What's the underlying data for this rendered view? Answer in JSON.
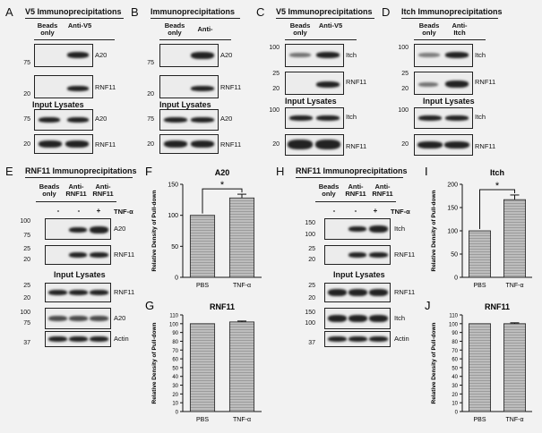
{
  "panels": {
    "A": {
      "letter": "A",
      "title": "V5 Immunoprecipitations",
      "lane1": "Beads only",
      "lane2": "Anti-V5",
      "section2": "Input Lysates",
      "blots": [
        {
          "mw": [
            "75"
          ],
          "name": "A20"
        },
        {
          "mw": [
            "20"
          ],
          "name": "RNF11"
        },
        {
          "mw": [
            "75"
          ],
          "name": "A20"
        },
        {
          "mw": [
            "20"
          ],
          "name": "RNF11"
        }
      ]
    },
    "B": {
      "letter": "B",
      "title": "Immunoprecipitations",
      "lane1": "Beads only",
      "lane2": "Anti-",
      "section2": "Input Lysates",
      "blots": [
        {
          "mw": [
            "75"
          ],
          "name": "A20"
        },
        {
          "mw": [
            "20"
          ],
          "name": "RNF11"
        },
        {
          "mw": [
            "75"
          ],
          "name": "A20"
        },
        {
          "mw": [
            "20"
          ],
          "name": "RNF11"
        }
      ]
    },
    "C": {
      "letter": "C",
      "title": "V5 Immunoprecipitations",
      "lane1": "Beads only",
      "lane2": "Anti-V5",
      "section2": "Input Lysates",
      "blots": [
        {
          "mw": [
            "100"
          ],
          "name": "Itch"
        },
        {
          "mw": [
            "25",
            "20"
          ],
          "name": "RNF11"
        },
        {
          "mw": [
            "100"
          ],
          "name": "Itch"
        },
        {
          "mw": [
            "20"
          ],
          "name": "RNF11"
        }
      ]
    },
    "D": {
      "letter": "D",
      "title": "Itch Immunoprecipitations",
      "lane1": "Beads only",
      "lane2": "Anti-Itch",
      "section2": "Input Lysates",
      "blots": [
        {
          "mw": [
            "100"
          ],
          "name": "Itch"
        },
        {
          "mw": [
            "25",
            "20"
          ],
          "name": "RNF11"
        },
        {
          "mw": [
            "100"
          ],
          "name": "Itch"
        },
        {
          "mw": [
            "20"
          ],
          "name": "RNF11"
        }
      ]
    },
    "E": {
      "letter": "E",
      "title": "RNF11 Immunoprecipitations",
      "lane1": "Beads only",
      "lane2": "Anti-RNF11",
      "lane3": "Anti-RNF11",
      "signs": [
        "-",
        "-",
        "+"
      ],
      "treatment": "TNF-α",
      "section2": "Input Lysates",
      "blots": [
        {
          "mw": [
            "100",
            "75"
          ],
          "name": "A20"
        },
        {
          "mw": [
            "25",
            "20"
          ],
          "name": "RNF11"
        },
        {
          "mw": [
            "25",
            "20"
          ],
          "name": "RNF11"
        },
        {
          "mw": [
            "100",
            "75"
          ],
          "name": "A20"
        },
        {
          "mw": [
            "37"
          ],
          "name": "Actin"
        }
      ]
    },
    "H": {
      "letter": "H",
      "title": "RNF11 Immunoprecipitations",
      "lane1": "Beads only",
      "lane2": "Anti-RNF11",
      "lane3": "Anti-RNF11",
      "signs": [
        "-",
        "-",
        "+"
      ],
      "treatment": "TNF-α",
      "section2": "Input Lysates",
      "blots": [
        {
          "mw": [
            "150",
            "100"
          ],
          "name": "Itch"
        },
        {
          "mw": [
            "25",
            "20"
          ],
          "name": "RNF11"
        },
        {
          "mw": [
            "25",
            "20"
          ],
          "name": "RNF11"
        },
        {
          "mw": [
            "150",
            "100"
          ],
          "name": "Itch"
        },
        {
          "mw": [
            "37"
          ],
          "name": "Actin"
        }
      ]
    }
  },
  "chart_data": [
    {
      "letter": "F",
      "type": "bar",
      "title": "A20",
      "categories": [
        "PBS",
        "TNF-α"
      ],
      "values": [
        100,
        128
      ],
      "errors": [
        0,
        6
      ],
      "ylabel": "Relative Density of Pull-down",
      "ylim": [
        0,
        150
      ],
      "yticks": [
        0,
        50,
        100,
        150
      ],
      "significance": "*"
    },
    {
      "letter": "G",
      "type": "bar",
      "title": "RNF11",
      "categories": [
        "PBS",
        "TNF-α"
      ],
      "values": [
        100,
        102
      ],
      "errors": [
        0,
        1
      ],
      "ylabel": "Relative Density of Pull-down",
      "ylim": [
        0,
        110
      ],
      "yticks": [
        0,
        10,
        20,
        30,
        40,
        50,
        60,
        70,
        80,
        90,
        100,
        110
      ]
    },
    {
      "letter": "I",
      "type": "bar",
      "title": "Itch",
      "categories": [
        "PBS",
        "TNF-α"
      ],
      "values": [
        100,
        167
      ],
      "errors": [
        0,
        10
      ],
      "ylabel": "Relative Density of Pull-down",
      "ylim": [
        0,
        200
      ],
      "yticks": [
        0,
        50,
        100,
        150,
        200
      ],
      "significance": "*"
    },
    {
      "letter": "J",
      "type": "bar",
      "title": "RNF11",
      "categories": [
        "PBS",
        "TNF-α"
      ],
      "values": [
        100,
        100
      ],
      "errors": [
        0,
        1
      ],
      "ylabel": "Relative Density of Pull-down",
      "ylim": [
        0,
        110
      ],
      "yticks": [
        0,
        10,
        20,
        30,
        40,
        50,
        60,
        70,
        80,
        90,
        100,
        110
      ]
    }
  ]
}
